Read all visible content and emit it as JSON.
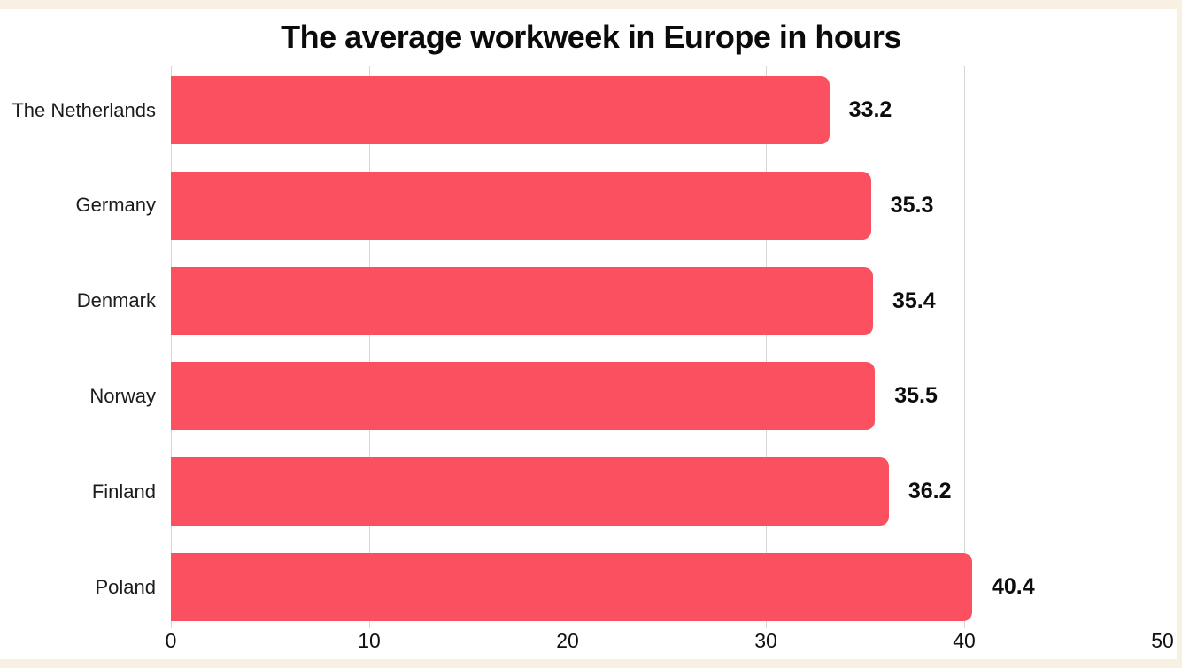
{
  "page": {
    "background_color": "#f8f0e3",
    "canvas_color": "#ffffff",
    "text_color": "#111111"
  },
  "chart_data": {
    "type": "bar",
    "orientation": "horizontal",
    "title": "The average workweek in Europe in hours",
    "categories": [
      "The Netherlands",
      "Germany",
      "Denmark",
      "Norway",
      "Finland",
      "Poland"
    ],
    "values": [
      33.2,
      35.3,
      35.4,
      35.5,
      36.2,
      40.4
    ],
    "value_labels": [
      "33.2",
      "35.3",
      "35.4",
      "35.5",
      "36.2",
      "40.4"
    ],
    "x_ticks": [
      "0",
      "10",
      "20",
      "30",
      "40",
      "50"
    ],
    "xlim": [
      0,
      50
    ],
    "xlabel": "",
    "ylabel": "",
    "grid": true,
    "legend": false,
    "bar_color": "#fb5060",
    "gridline_color": "#d6d6d6",
    "label_color": "#1c1c1c",
    "value_label_color": "#0d0d0d"
  }
}
